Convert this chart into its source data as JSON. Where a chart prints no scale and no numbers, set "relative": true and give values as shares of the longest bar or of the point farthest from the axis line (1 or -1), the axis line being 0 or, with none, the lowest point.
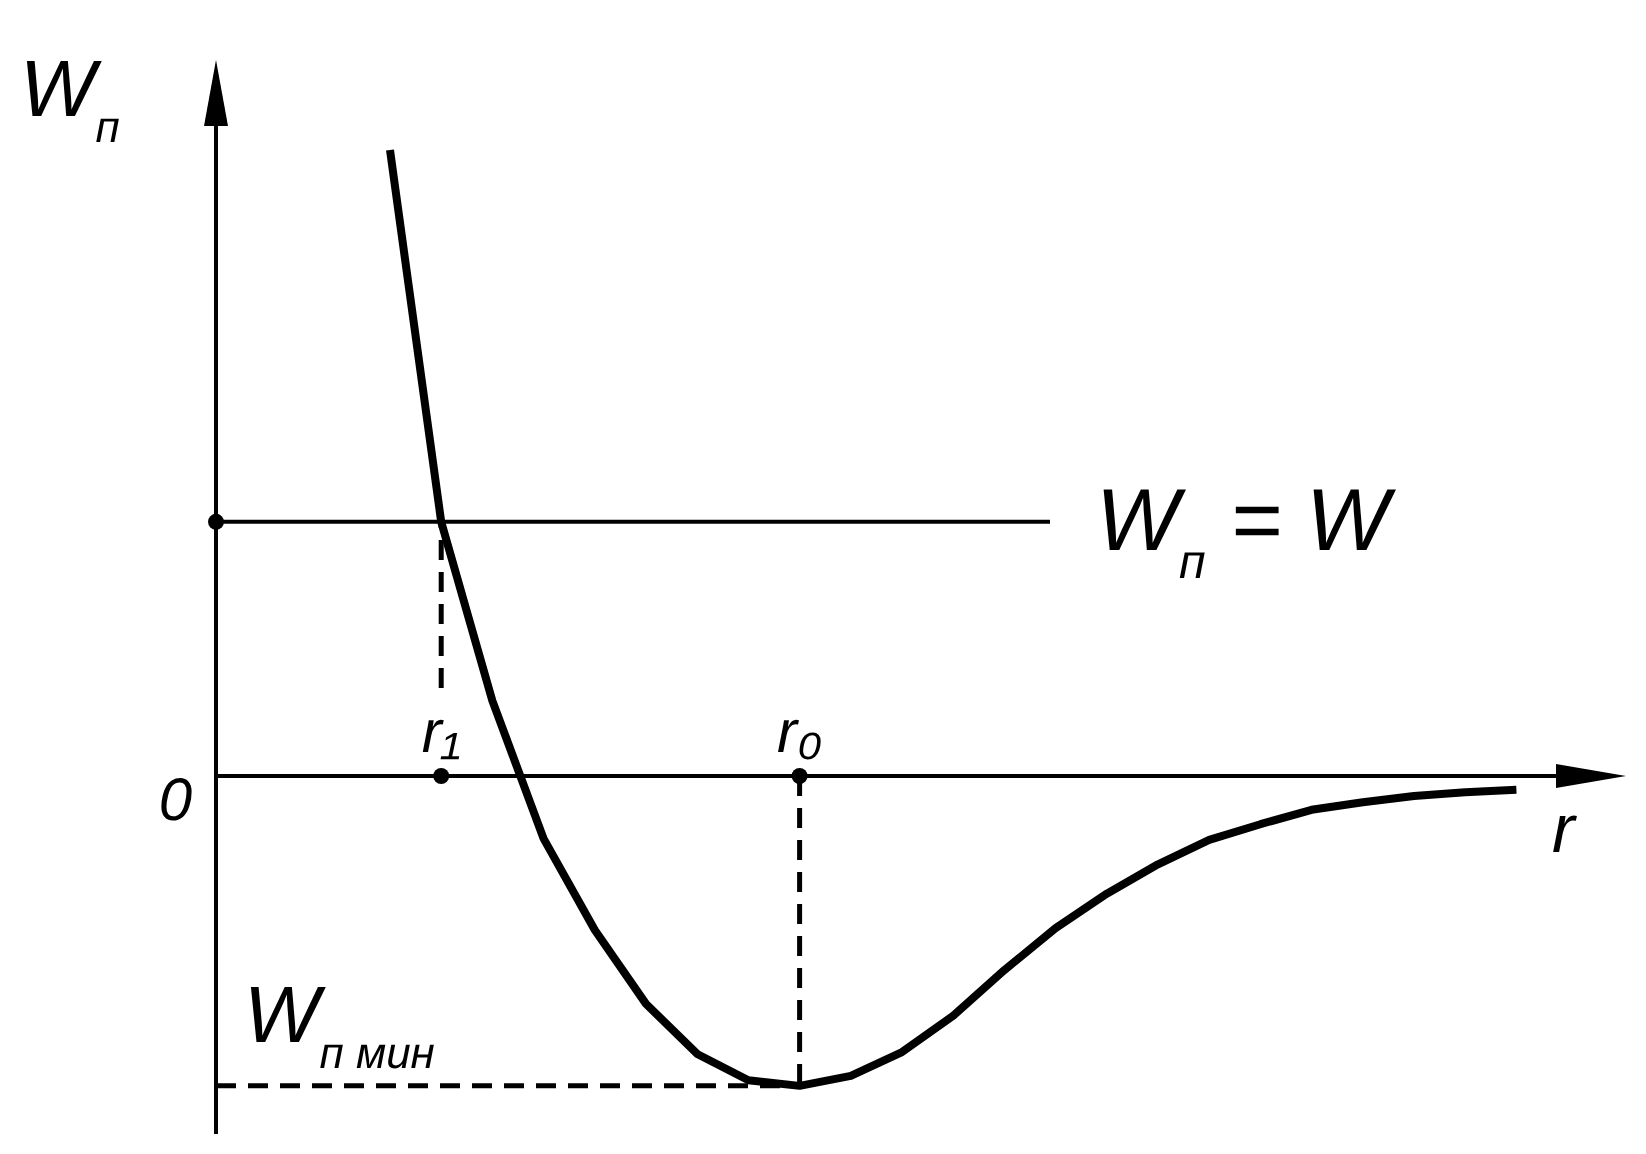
{
  "chart_data": {
    "type": "line",
    "relative": true,
    "xlabel": "r",
    "ylabel": "W$_{п}$",
    "categories": [
      null,
      "r₁",
      null,
      null,
      null,
      null,
      null,
      null,
      "r₀",
      null,
      null,
      null,
      null,
      null,
      null,
      null,
      null,
      null,
      null,
      null,
      null,
      null,
      null
    ],
    "series": [
      {
        "color": "#000000",
        "values": [
          1.0,
          0.406,
          0.12,
          -0.1,
          -0.246,
          -0.364,
          -0.444,
          -0.486,
          -0.495,
          -0.479,
          -0.441,
          -0.383,
          -0.31,
          -0.243,
          -0.188,
          -0.141,
          -0.102,
          -0.077,
          -0.054,
          -0.042,
          -0.032,
          -0.026,
          -0.022
        ]
      }
    ],
    "ref_lines": [
      {
        "axis": "y",
        "value": 0.406,
        "label": "W$_{п}$ = W",
        "color": "#000000"
      }
    ],
    "annotations": [
      "0",
      "W$_{п мин}$"
    ],
    "grid": false,
    "legend": false,
    "marker": "none",
    "line_style": "solid"
  }
}
